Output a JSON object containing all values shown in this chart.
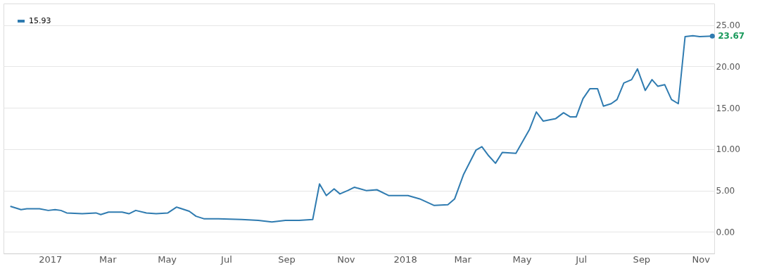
{
  "chart_data": {
    "type": "line",
    "x": [
      "2016-11-21",
      "2016-12-02",
      "2016-12-08",
      "2016-12-21",
      "2016-12-30",
      "2017-01-06",
      "2017-01-12",
      "2017-01-18",
      "2017-02-03",
      "2017-02-17",
      "2017-02-22",
      "2017-03-02",
      "2017-03-16",
      "2017-03-23",
      "2017-03-30",
      "2017-04-10",
      "2017-04-20",
      "2017-05-02",
      "2017-05-11",
      "2017-05-24",
      "2017-05-31",
      "2017-06-08",
      "2017-06-23",
      "2017-07-17",
      "2017-08-03",
      "2017-08-17",
      "2017-08-31",
      "2017-09-14",
      "2017-09-28",
      "2017-10-05",
      "2017-10-12",
      "2017-10-20",
      "2017-10-26",
      "2017-11-03",
      "2017-11-10",
      "2017-11-22",
      "2017-12-03",
      "2017-12-15",
      "2018-01-04",
      "2018-01-16",
      "2018-01-31",
      "2018-02-14",
      "2018-02-21",
      "2018-03-02",
      "2018-03-15",
      "2018-03-21",
      "2018-03-28",
      "2018-04-04",
      "2018-04-11",
      "2018-04-25",
      "2018-05-09",
      "2018-05-16",
      "2018-05-23",
      "2018-06-05",
      "2018-06-13",
      "2018-06-20",
      "2018-06-26",
      "2018-07-03",
      "2018-07-10",
      "2018-07-18",
      "2018-07-24",
      "2018-08-01",
      "2018-08-07",
      "2018-08-14",
      "2018-08-22",
      "2018-08-28",
      "2018-09-05",
      "2018-09-12",
      "2018-09-18",
      "2018-09-25",
      "2018-10-02",
      "2018-10-09",
      "2018-10-16",
      "2018-10-24",
      "2018-10-31",
      "2018-11-13"
    ],
    "series": [
      {
        "name": "15.93",
        "color": "#2f7bb0",
        "values": [
          3.1,
          2.7,
          2.8,
          2.8,
          2.6,
          2.7,
          2.6,
          2.3,
          2.2,
          2.3,
          2.1,
          2.4,
          2.4,
          2.2,
          2.6,
          2.3,
          2.2,
          2.3,
          3.0,
          2.5,
          1.9,
          1.6,
          1.6,
          1.5,
          1.4,
          1.2,
          1.4,
          1.4,
          1.5,
          5.8,
          4.4,
          5.2,
          4.6,
          5.0,
          5.4,
          5.0,
          5.1,
          4.4,
          4.4,
          4.0,
          3.2,
          3.3,
          4.0,
          6.9,
          9.9,
          10.3,
          9.2,
          8.3,
          9.6,
          9.5,
          12.4,
          14.5,
          13.4,
          13.7,
          14.4,
          13.9,
          13.9,
          16.1,
          17.3,
          17.3,
          15.2,
          15.5,
          16.0,
          18.0,
          18.4,
          19.7,
          17.1,
          18.4,
          17.6,
          17.8,
          16.0,
          15.5,
          23.6,
          23.7,
          23.6,
          23.67
        ]
      }
    ],
    "xlim": [
      "2016-11-14",
      "2018-11-15"
    ],
    "xticks": [
      {
        "value": "2017-01-01",
        "label": "2017"
      },
      {
        "value": "2017-03-01",
        "label": "Mar"
      },
      {
        "value": "2017-05-01",
        "label": "May"
      },
      {
        "value": "2017-07-01",
        "label": "Jul"
      },
      {
        "value": "2017-09-01",
        "label": "Sep"
      },
      {
        "value": "2017-11-01",
        "label": "Nov"
      },
      {
        "value": "2018-01-01",
        "label": "2018"
      },
      {
        "value": "2018-03-01",
        "label": "Mar"
      },
      {
        "value": "2018-05-01",
        "label": "May"
      },
      {
        "value": "2018-07-01",
        "label": "Jul"
      },
      {
        "value": "2018-09-01",
        "label": "Sep"
      },
      {
        "value": "2018-11-01",
        "label": "Nov"
      }
    ],
    "ylim": [
      -2.6,
      27.6
    ],
    "yticks": [
      {
        "value": 0,
        "label": "0.00"
      },
      {
        "value": 5,
        "label": "5.00"
      },
      {
        "value": 10,
        "label": "10.00"
      },
      {
        "value": 15,
        "label": "15.00"
      },
      {
        "value": 20,
        "label": "20.00"
      },
      {
        "value": 25,
        "label": "25.00"
      }
    ],
    "annotations": [
      {
        "text": "23.67",
        "x": "2018-11-13",
        "y": 23.67
      }
    ],
    "grid": "y",
    "legend": "top left",
    "line_style": "solid",
    "marker": "none"
  }
}
